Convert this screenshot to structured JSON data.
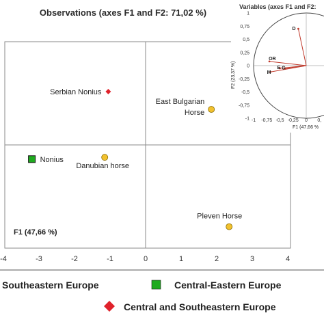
{
  "chart_data": [
    {
      "type": "scatter",
      "title": "Observations (axes F1 and F2: 71,02 %)",
      "xlabel": "F1 (47,66 %)",
      "xlim": [
        -4,
        4
      ],
      "ylim": [
        -3,
        3
      ],
      "xticks": [
        "-4",
        "-3",
        "-2",
        "-1",
        "0",
        "1",
        "2",
        "3",
        "4"
      ],
      "points": [
        {
          "label": "Serbian Nonius",
          "x": -1.05,
          "y": 1.5,
          "group": "Central and Southeastern Europe"
        },
        {
          "label": "East Bulgarian Horse",
          "x": 1.85,
          "y": 1.0,
          "group": "Southeastern Europe"
        },
        {
          "label": "Nonius",
          "x": -3.2,
          "y": -0.4,
          "group": "Central-Eastern Europe"
        },
        {
          "label": "Danubian horse",
          "x": -1.15,
          "y": -0.35,
          "group": "Southeastern Europe"
        },
        {
          "label": "Pleven Horse",
          "x": 2.35,
          "y": -2.3,
          "group": "Southeastern Europe"
        }
      ],
      "legend": [
        {
          "label": "Southeastern Europe",
          "color": "#f2c12e",
          "marker": "circle"
        },
        {
          "label": "Central-Eastern Europe",
          "color": "#1faa1f",
          "marker": "square"
        },
        {
          "label": "Central and Southeastern Europe",
          "color": "#e0222b",
          "marker": "diamond"
        }
      ]
    },
    {
      "type": "scatter",
      "title": "Variables (axes F1 and F2: ",
      "xlabel": "F1 (47,66 %",
      "ylabel": "F2 (23,37 %)",
      "xlim": [
        -1,
        1
      ],
      "ylim": [
        -1,
        1
      ],
      "xticks": [
        "-1",
        "-0,75",
        "-0,5",
        "-0,25",
        "0",
        "0,"
      ],
      "yticks": [
        "1",
        "0,75",
        "0,5",
        "0,25",
        "0",
        "-0,25",
        "-0,5",
        "-0,75",
        "-1"
      ],
      "variables": [
        {
          "label": "D",
          "x": -0.15,
          "y": 0.7
        },
        {
          "label": "OR",
          "x": -0.7,
          "y": 0.08
        },
        {
          "label": "M",
          "x": -0.68,
          "y": -0.12
        },
        {
          "label": "E",
          "x": -0.5,
          "y": -0.05
        },
        {
          "label": "G",
          "x": -0.4,
          "y": -0.06
        }
      ]
    }
  ],
  "colors": {
    "southeastern": "#f2c12e",
    "central_eastern": "#1faa1f",
    "central_southeastern": "#e0222b",
    "vector": "#c0392b"
  }
}
